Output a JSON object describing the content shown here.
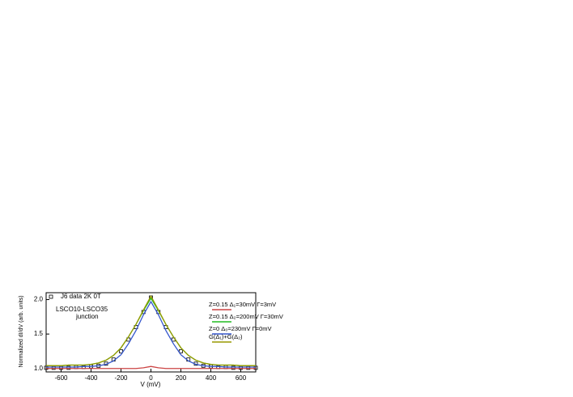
{
  "chart_data": {
    "type": "line",
    "x_label": "V (mV)",
    "y_label": "Normalized dI/dV (arb. units)",
    "annotations": [
      "LSCO10-LSCO35",
      "junction"
    ],
    "x": [
      -700,
      -650,
      -600,
      -550,
      -500,
      -450,
      -400,
      -350,
      -300,
      -250,
      -200,
      -150,
      -100,
      -50,
      0,
      50,
      100,
      150,
      200,
      250,
      300,
      350,
      400,
      450,
      500,
      550,
      600,
      650,
      700
    ],
    "series": [
      {
        "name": "J6 data  2K  0T",
        "color": "#000000",
        "marker": "square",
        "values": [
          1.01,
          1.01,
          1.01,
          1.01,
          1.02,
          1.02,
          1.03,
          1.04,
          1.07,
          1.13,
          1.25,
          1.42,
          1.6,
          1.82,
          2.03,
          1.82,
          1.6,
          1.42,
          1.25,
          1.13,
          1.07,
          1.04,
          1.03,
          1.02,
          1.02,
          1.01,
          1.01,
          1.01,
          1.01
        ]
      },
      {
        "name": "Z=0.15  Δ₁=30mV   Γ=3mV",
        "color": "#cc4444",
        "values": [
          1.0,
          1.0,
          1.0,
          1.0,
          1.0,
          1.0,
          1.0,
          1.0,
          1.0,
          1.0,
          1.0,
          1.0,
          1.0,
          1.01,
          1.03,
          1.01,
          1.0,
          1.0,
          1.0,
          1.0,
          1.0,
          1.0,
          1.0,
          1.0,
          1.0,
          1.0,
          1.0,
          1.0,
          1.0
        ]
      },
      {
        "name": "Z=0.15  Δ₂=200mV   Γ=30mV",
        "color": "#22bb22",
        "values": [
          1.04,
          1.04,
          1.04,
          1.05,
          1.05,
          1.05,
          1.06,
          1.08,
          1.12,
          1.19,
          1.3,
          1.46,
          1.64,
          1.84,
          2.02,
          1.84,
          1.64,
          1.46,
          1.3,
          1.19,
          1.12,
          1.08,
          1.06,
          1.05,
          1.05,
          1.05,
          1.04,
          1.04,
          1.04
        ]
      },
      {
        "name": "Z=0  Δ₀=230mV   Γ=0mV",
        "color": "#3355cc",
        "values": [
          1.02,
          1.02,
          1.02,
          1.02,
          1.02,
          1.03,
          1.03,
          1.04,
          1.06,
          1.11,
          1.2,
          1.36,
          1.55,
          1.78,
          1.97,
          1.78,
          1.55,
          1.36,
          1.2,
          1.11,
          1.06,
          1.04,
          1.03,
          1.03,
          1.02,
          1.02,
          1.02,
          1.02,
          1.02
        ]
      },
      {
        "name": "G(Δ₁)+G(Δ₂)",
        "color": "#999900",
        "values": [
          1.04,
          1.04,
          1.04,
          1.05,
          1.05,
          1.05,
          1.06,
          1.08,
          1.12,
          1.19,
          1.3,
          1.46,
          1.64,
          1.85,
          2.05,
          1.85,
          1.64,
          1.46,
          1.3,
          1.19,
          1.12,
          1.08,
          1.06,
          1.05,
          1.05,
          1.05,
          1.04,
          1.04,
          1.04
        ]
      }
    ],
    "xlim": [
      -700,
      700
    ],
    "ylim": [
      0.95,
      2.1
    ],
    "xticks": [
      -600,
      -400,
      -200,
      0,
      200,
      400,
      600
    ],
    "yticks": [
      {
        "value": 1,
        "label": "1.0"
      },
      1.5,
      {
        "value": 2,
        "label": "2.0"
      }
    ]
  }
}
